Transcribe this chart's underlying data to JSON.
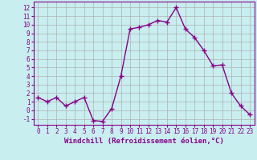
{
  "x": [
    0,
    1,
    2,
    3,
    4,
    5,
    6,
    7,
    8,
    9,
    10,
    11,
    12,
    13,
    14,
    15,
    16,
    17,
    18,
    19,
    20,
    21,
    22,
    23
  ],
  "y": [
    1.5,
    1.0,
    1.5,
    0.5,
    1.0,
    1.5,
    -1.2,
    -1.3,
    0.2,
    4.0,
    9.5,
    9.7,
    10.0,
    10.5,
    10.3,
    12.0,
    9.5,
    8.5,
    7.0,
    5.2,
    5.3,
    2.0,
    0.5,
    -0.5
  ],
  "line_color": "#880088",
  "marker": "+",
  "marker_size": 4,
  "marker_lw": 1.0,
  "bg_color": "#c8eef0",
  "grid_color": "#b0b0b0",
  "xlabel": "Windchill (Refroidissement éolien,°C)",
  "ylabel_ticks": [
    -1,
    0,
    1,
    2,
    3,
    4,
    5,
    6,
    7,
    8,
    9,
    10,
    11,
    12
  ],
  "xlim": [
    -0.5,
    23.5
  ],
  "ylim": [
    -1.7,
    12.7
  ],
  "xticks": [
    0,
    1,
    2,
    3,
    4,
    5,
    6,
    7,
    8,
    9,
    10,
    11,
    12,
    13,
    14,
    15,
    16,
    17,
    18,
    19,
    20,
    21,
    22,
    23
  ],
  "axis_color": "#880088",
  "tick_fontsize": 5.5,
  "xlabel_fontsize": 6.5,
  "linewidth": 1.0
}
